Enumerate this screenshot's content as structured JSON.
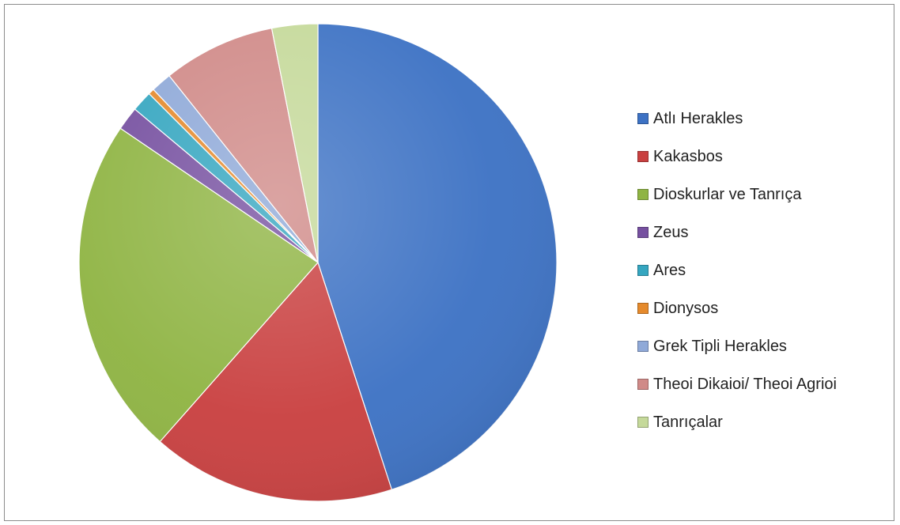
{
  "chart_data": {
    "type": "pie",
    "title": "",
    "legend_position": "right",
    "series": [
      {
        "name": "Atlı Herakles",
        "value": 45.0,
        "color": "#3d72c4"
      },
      {
        "name": "Kakasbos",
        "value": 16.5,
        "color": "#c94040"
      },
      {
        "name": "Dioskurlar ve Tanrıça",
        "value": 23.0,
        "color": "#8fb443"
      },
      {
        "name": "Zeus",
        "value": 1.6,
        "color": "#7650a0"
      },
      {
        "name": "Ares",
        "value": 1.4,
        "color": "#35a6c0"
      },
      {
        "name": "Dionysos",
        "value": 0.4,
        "color": "#e58a2c"
      },
      {
        "name": "Grek Tipli Herakles",
        "value": 1.4,
        "color": "#8fa9d8"
      },
      {
        "name": "Theoi Dikaioi/ Theoi Agrioi",
        "value": 7.6,
        "color": "#d08a88"
      },
      {
        "name": "Tanrıçalar",
        "value": 3.1,
        "color": "#c5d99a"
      }
    ]
  }
}
